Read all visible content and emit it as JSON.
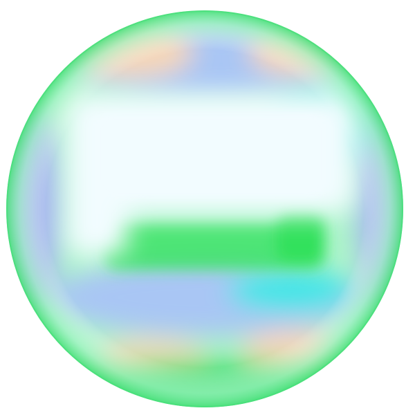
{
  "image": {
    "subject": "soap-bubble",
    "background_color": "#ffffff",
    "colors": {
      "rim_green": "#49e07a",
      "mint": "#9ef3c0",
      "sky_blue": "#a9c6f4",
      "periwinkle": "#a7b7ef",
      "cyan": "#3fe6e6",
      "peach": "#f6d7b8",
      "bright_green": "#2fe05a",
      "highlight_white": "#f2fcff"
    }
  }
}
